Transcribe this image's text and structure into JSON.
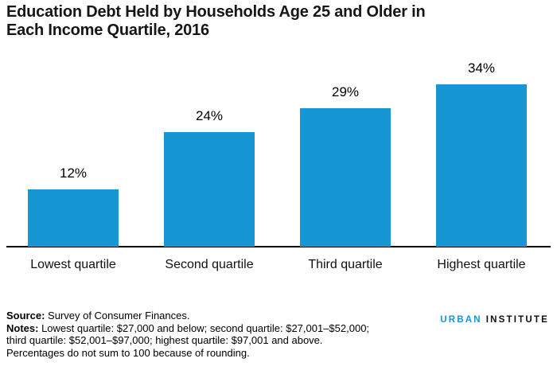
{
  "title": {
    "line1": "Education Debt Held by Households Age 25 and Older in",
    "line2": "Each Income Quartile, 2016"
  },
  "chart_data": {
    "type": "bar",
    "title": "Education Debt Held by Households Age 25 and Older in Each Income Quartile, 2016",
    "categories": [
      "Lowest quartile",
      "Second quartile",
      "Third quartile",
      "Highest quartile"
    ],
    "values": [
      12,
      24,
      29,
      34
    ],
    "value_labels": [
      "12%",
      "24%",
      "29%",
      "34%"
    ],
    "xlabel": "",
    "ylabel": "",
    "ylim": [
      0,
      40
    ],
    "unit": "percent",
    "grid": false,
    "legend": false,
    "bar_color": "#1696d2",
    "axis_line_color": "#000000",
    "label_color": "#000000"
  },
  "footnotes": {
    "source_label": "Source:",
    "source_text": " Survey of Consumer Finances.",
    "notes_label": "Notes:",
    "notes_text": " Lowest quartile: $27,000 and below; second quartile: $27,001–$52,000;",
    "notes_line2": "third quartile: $52,001–$97,000; highest quartile: $97,001 and above.",
    "notes_line3": "Percentages do not sum to 100 because of rounding."
  },
  "branding": {
    "org_word1": "URBAN",
    "org_word2": "INSTITUTE",
    "word1_color": "#1696d2",
    "word2_color": "#0e0e10"
  }
}
